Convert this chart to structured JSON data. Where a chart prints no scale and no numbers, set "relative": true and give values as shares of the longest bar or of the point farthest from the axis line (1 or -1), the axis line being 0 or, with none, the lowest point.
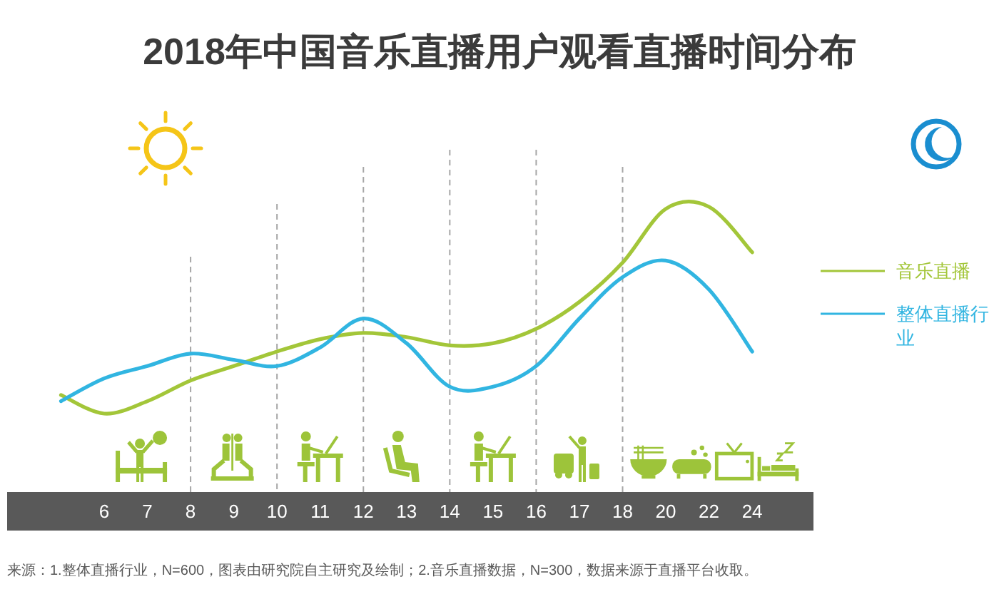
{
  "chart_data": {
    "type": "line",
    "title": "2018年中国音乐直播用户观看直播时间分布",
    "categories": [
      null,
      "6",
      "7",
      "8",
      "9",
      "10",
      "11",
      "12",
      "13",
      "14",
      "15",
      "16",
      "17",
      "18",
      "20",
      "22",
      "24"
    ],
    "relative": true,
    "series": [
      {
        "name": "音乐直播",
        "color": "#a3c639",
        "values": [
          0.09,
          0,
          0.06,
          0.16,
          0.23,
          0.3,
          0.36,
          0.39,
          0.37,
          0.33,
          0.34,
          0.41,
          0.54,
          0.73,
          0.99,
          1,
          0.78
        ]
      },
      {
        "name": "整体直播行业",
        "color": "#31b5e1",
        "values": [
          0.06,
          0.17,
          0.23,
          0.29,
          0.26,
          0.23,
          0.32,
          0.46,
          0.34,
          0.13,
          0.13,
          0.23,
          0.46,
          0.66,
          0.74,
          0.6,
          0.3
        ]
      }
    ],
    "ref_lines": [
      {
        "axis": "x",
        "value": "8",
        "color": "#a6a6a6",
        "line_style": "dashed"
      },
      {
        "axis": "x",
        "value": "10",
        "color": "#a6a6a6",
        "line_style": "dashed"
      },
      {
        "axis": "x",
        "value": "12",
        "color": "#a6a6a6",
        "line_style": "dashed"
      },
      {
        "axis": "x",
        "value": "14",
        "color": "#a6a6a6",
        "line_style": "dashed"
      },
      {
        "axis": "x",
        "value": "16",
        "color": "#a6a6a6",
        "line_style": "dashed"
      },
      {
        "axis": "x",
        "value": "18",
        "color": "#a6a6a6",
        "line_style": "dashed"
      }
    ],
    "legend": "right",
    "annotations": [
      "来源：1.整体直播行业，N=600，图表由研究院自主研究及绘制；2.音乐直播数据，N=300，数据来源于直播平台收取。"
    ]
  }
}
